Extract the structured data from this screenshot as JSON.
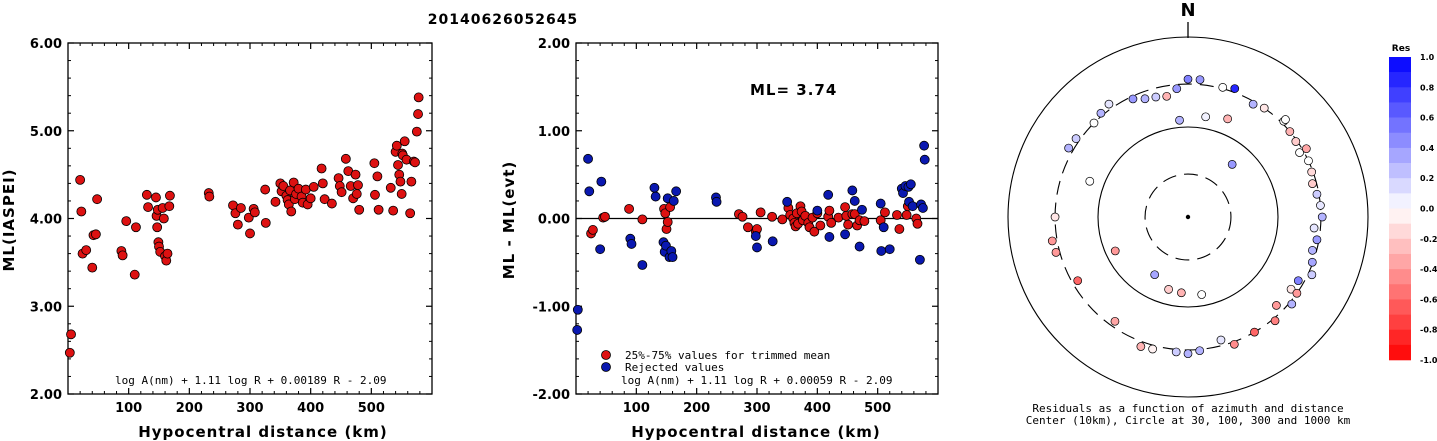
{
  "figure_title": "20140626052645",
  "colors": {
    "red": "#dd1111",
    "blue": "#0a18b0",
    "stroke": "#000000"
  },
  "chart_data": [
    {
      "type": "scatter",
      "id": "left",
      "xlabel": "Hypocentral distance (km)",
      "ylabel": "ML(IASPEI)",
      "xlim": [
        0,
        600
      ],
      "ylim": [
        2.0,
        6.0
      ],
      "xticks": [
        100,
        200,
        300,
        400,
        500
      ],
      "yticks": [
        2.0,
        3.0,
        4.0,
        5.0,
        6.0
      ],
      "ytick_labels": [
        "2.00",
        "3.00",
        "4.00",
        "5.00",
        "6.00"
      ],
      "formula": "log A(nm) + 1.11 log R + 0.00189 R - 2.09",
      "points": [
        [
          5,
          2.68
        ],
        [
          3,
          2.47
        ],
        [
          20,
          4.44
        ],
        [
          22,
          4.08
        ],
        [
          24,
          3.6
        ],
        [
          30,
          3.64
        ],
        [
          40,
          3.44
        ],
        [
          42,
          3.81
        ],
        [
          46,
          3.82
        ],
        [
          48,
          4.22
        ],
        [
          88,
          3.63
        ],
        [
          90,
          3.58
        ],
        [
          96,
          3.97
        ],
        [
          110,
          3.36
        ],
        [
          112,
          3.9
        ],
        [
          130,
          4.27
        ],
        [
          132,
          4.13
        ],
        [
          145,
          4.24
        ],
        [
          146,
          4.03
        ],
        [
          148,
          4.1
        ],
        [
          147,
          3.9
        ],
        [
          149,
          3.73
        ],
        [
          150,
          3.68
        ],
        [
          152,
          3.62
        ],
        [
          156,
          4.12
        ],
        [
          158,
          4.0
        ],
        [
          160,
          3.57
        ],
        [
          162,
          3.52
        ],
        [
          164,
          3.6
        ],
        [
          167,
          4.14
        ],
        [
          168,
          4.26
        ],
        [
          232,
          4.29
        ],
        [
          233,
          4.25
        ],
        [
          272,
          4.15
        ],
        [
          276,
          4.06
        ],
        [
          280,
          3.93
        ],
        [
          285,
          4.12
        ],
        [
          298,
          4.01
        ],
        [
          300,
          3.83
        ],
        [
          306,
          4.11
        ],
        [
          308,
          4.07
        ],
        [
          325,
          4.33
        ],
        [
          326,
          3.95
        ],
        [
          342,
          4.19
        ],
        [
          350,
          4.4
        ],
        [
          352,
          4.31
        ],
        [
          355,
          4.37
        ],
        [
          360,
          4.26
        ],
        [
          362,
          4.21
        ],
        [
          364,
          4.16
        ],
        [
          366,
          4.32
        ],
        [
          368,
          4.08
        ],
        [
          372,
          4.41
        ],
        [
          374,
          4.22
        ],
        [
          376,
          4.28
        ],
        [
          380,
          4.34
        ],
        [
          385,
          4.25
        ],
        [
          387,
          4.18
        ],
        [
          392,
          4.33
        ],
        [
          395,
          4.16
        ],
        [
          400,
          4.23
        ],
        [
          405,
          4.36
        ],
        [
          418,
          4.57
        ],
        [
          420,
          4.4
        ],
        [
          423,
          4.22
        ],
        [
          435,
          4.17
        ],
        [
          446,
          4.46
        ],
        [
          448,
          4.37
        ],
        [
          451,
          4.3
        ],
        [
          458,
          4.68
        ],
        [
          462,
          4.54
        ],
        [
          466,
          4.37
        ],
        [
          470,
          4.23
        ],
        [
          474,
          4.5
        ],
        [
          476,
          4.28
        ],
        [
          478,
          4.38
        ],
        [
          480,
          4.1
        ],
        [
          505,
          4.63
        ],
        [
          506,
          4.27
        ],
        [
          510,
          4.48
        ],
        [
          512,
          4.1
        ],
        [
          532,
          4.35
        ],
        [
          536,
          4.09
        ],
        [
          540,
          4.76
        ],
        [
          542,
          4.83
        ],
        [
          544,
          4.61
        ],
        [
          546,
          4.5
        ],
        [
          548,
          4.42
        ],
        [
          550,
          4.28
        ],
        [
          551,
          4.74
        ],
        [
          552,
          4.72
        ],
        [
          555,
          4.88
        ],
        [
          558,
          4.67
        ],
        [
          564,
          4.06
        ],
        [
          566,
          4.42
        ],
        [
          570,
          4.65
        ],
        [
          572,
          4.64
        ],
        [
          575,
          4.99
        ],
        [
          577,
          5.19
        ],
        [
          578,
          5.38
        ]
      ]
    },
    {
      "type": "scatter",
      "id": "middle",
      "xlabel": "Hypocentral distance (km)",
      "ylabel": "ML - ML(evt)",
      "xlim": [
        0,
        600
      ],
      "ylim": [
        -2.0,
        2.0
      ],
      "xticks": [
        100,
        200,
        300,
        400,
        500
      ],
      "yticks": [
        -2.0,
        -1.0,
        0.0,
        1.0,
        2.0
      ],
      "ytick_labels": [
        "-2.00",
        "-1.00",
        "0.00",
        "1.00",
        "2.00"
      ],
      "ml_label": "ML= 3.74",
      "formula": "log A(nm) + 1.11 log R + 0.00059 R - 2.09",
      "legend": [
        "25%-75% values for trimmed mean",
        "Rejected values"
      ],
      "series": [
        {
          "name": "25%-75% values for trimmed mean",
          "color": "red",
          "points": [
            [
              25,
              -0.17
            ],
            [
              28,
              -0.13
            ],
            [
              45,
              0.01
            ],
            [
              48,
              0.02
            ],
            [
              88,
              0.11
            ],
            [
              110,
              -0.01
            ],
            [
              146,
              0.11
            ],
            [
              148,
              0.06
            ],
            [
              150,
              -0.12
            ],
            [
              152,
              -0.04
            ],
            [
              156,
              0.13
            ],
            [
              270,
              0.05
            ],
            [
              276,
              0.02
            ],
            [
              285,
              -0.1
            ],
            [
              298,
              -0.15
            ],
            [
              300,
              -0.12
            ],
            [
              306,
              0.07
            ],
            [
              325,
              0.02
            ],
            [
              342,
              -0.01
            ],
            [
              352,
              0.12
            ],
            [
              355,
              0.04
            ],
            [
              360,
              0.0
            ],
            [
              362,
              -0.05
            ],
            [
              364,
              -0.09
            ],
            [
              366,
              0.06
            ],
            [
              368,
              -0.06
            ],
            [
              372,
              0.14
            ],
            [
              374,
              0.08
            ],
            [
              376,
              -0.02
            ],
            [
              380,
              0.03
            ],
            [
              385,
              -0.05
            ],
            [
              387,
              -0.1
            ],
            [
              392,
              0.01
            ],
            [
              395,
              -0.15
            ],
            [
              400,
              0.06
            ],
            [
              405,
              -0.08
            ],
            [
              418,
              0.02
            ],
            [
              420,
              0.09
            ],
            [
              423,
              -0.05
            ],
            [
              435,
              0.01
            ],
            [
              446,
              0.13
            ],
            [
              448,
              0.03
            ],
            [
              451,
              -0.07
            ],
            [
              458,
              0.05
            ],
            [
              462,
              0.05
            ],
            [
              466,
              -0.08
            ],
            [
              470,
              -0.02
            ],
            [
              478,
              -0.03
            ],
            [
              505,
              -0.02
            ],
            [
              512,
              0.07
            ],
            [
              532,
              0.04
            ],
            [
              536,
              -0.12
            ],
            [
              548,
              0.04
            ],
            [
              550,
              0.14
            ],
            [
              564,
              0.0
            ],
            [
              566,
              -0.06
            ]
          ]
        },
        {
          "name": "Rejected values",
          "color": "blue",
          "points": [
            [
              3,
              -1.04
            ],
            [
              2,
              -1.27
            ],
            [
              20,
              0.68
            ],
            [
              22,
              0.31
            ],
            [
              40,
              -0.35
            ],
            [
              42,
              0.42
            ],
            [
              90,
              -0.23
            ],
            [
              92,
              -0.29
            ],
            [
              110,
              -0.53
            ],
            [
              130,
              0.35
            ],
            [
              132,
              0.25
            ],
            [
              145,
              -0.27
            ],
            [
              147,
              -0.38
            ],
            [
              149,
              -0.31
            ],
            [
              152,
              0.23
            ],
            [
              155,
              -0.44
            ],
            [
              158,
              -0.37
            ],
            [
              160,
              -0.44
            ],
            [
              162,
              0.2
            ],
            [
              166,
              0.31
            ],
            [
              232,
              0.24
            ],
            [
              233,
              0.19
            ],
            [
              298,
              -0.2
            ],
            [
              300,
              -0.33
            ],
            [
              326,
              -0.26
            ],
            [
              350,
              0.19
            ],
            [
              400,
              0.09
            ],
            [
              418,
              0.27
            ],
            [
              420,
              -0.21
            ],
            [
              446,
              -0.18
            ],
            [
              458,
              0.32
            ],
            [
              462,
              0.2
            ],
            [
              470,
              -0.32
            ],
            [
              474,
              0.1
            ],
            [
              505,
              0.17
            ],
            [
              506,
              -0.37
            ],
            [
              510,
              -0.1
            ],
            [
              520,
              -0.35
            ],
            [
              540,
              0.34
            ],
            [
              542,
              0.29
            ],
            [
              546,
              0.37
            ],
            [
              551,
              0.36
            ],
            [
              552,
              0.19
            ],
            [
              555,
              0.39
            ],
            [
              558,
              0.14
            ],
            [
              570,
              -0.47
            ],
            [
              572,
              0.16
            ],
            [
              575,
              0.12
            ],
            [
              577,
              0.83
            ],
            [
              578,
              0.67
            ]
          ]
        }
      ]
    },
    {
      "type": "polar-scatter",
      "id": "right",
      "north_label": "N",
      "caption": [
        "Residuals as a function of azimuth and distance",
        "Center (10km), Circle at 30, 100, 300 and 1000 km"
      ],
      "rings_km": [
        30,
        100,
        300,
        1000
      ],
      "colorbar": {
        "title": "Res",
        "ticks": [
          "1.0",
          "0.8",
          "0.6",
          "0.4",
          "0.2",
          "0.0",
          "-0.2",
          "-0.4",
          "-0.6",
          "-0.8",
          "-1.0"
        ],
        "min": -1.0,
        "max": 1.0
      },
      "points": [
        [
          210,
          55,
          0.35
        ],
        [
          40,
          58,
          0.4
        ],
        [
          195,
          68,
          -0.2
        ],
        [
          185,
          70,
          -0.3
        ],
        [
          170,
          75,
          0.0
        ],
        [
          245,
          78,
          -0.4
        ],
        [
          355,
          120,
          0.3
        ],
        [
          10,
          135,
          0.05
        ],
        [
          290,
          145,
          0.0
        ],
        [
          22,
          150,
          -0.3
        ],
        [
          120,
          260,
          0.5
        ],
        [
          125,
          250,
          -0.1
        ],
        [
          135,
          245,
          -0.4
        ],
        [
          100,
          285,
          0.4
        ],
        [
          105,
          270,
          0.3
        ],
        [
          110,
          295,
          0.35
        ],
        [
          95,
          255,
          0.1
        ],
        [
          70,
          290,
          -0.15
        ],
        [
          65,
          300,
          0.0
        ],
        [
          80,
          285,
          0.2
        ],
        [
          75,
          270,
          -0.2
        ],
        [
          85,
          300,
          0.1
        ],
        [
          90,
          310,
          0.3
        ],
        [
          270,
          300,
          -0.1
        ],
        [
          240,
          260,
          -0.6
        ],
        [
          215,
          260,
          -0.35
        ],
        [
          165,
          260,
          0.1
        ],
        [
          150,
          300,
          -0.6
        ],
        [
          160,
          320,
          -0.45
        ],
        [
          175,
          310,
          0.3
        ],
        [
          180,
          330,
          0.3
        ],
        [
          185,
          320,
          0.2
        ],
        [
          195,
          330,
          -0.05
        ],
        [
          315,
          300,
          0.0
        ],
        [
          320,
          320,
          0.3
        ],
        [
          325,
          340,
          0.1
        ],
        [
          335,
          280,
          0.4
        ],
        [
          340,
          250,
          0.3
        ],
        [
          345,
          240,
          0.2
        ],
        [
          350,
          230,
          -0.3
        ],
        [
          355,
          270,
          0.4
        ],
        [
          0,
          340,
          0.5
        ],
        [
          5,
          340,
          0.4
        ],
        [
          15,
          310,
          0.0
        ],
        [
          20,
          330,
          0.85
        ],
        [
          30,
          280,
          0.3
        ],
        [
          35,
          300,
          -0.1
        ],
        [
          45,
          320,
          0.0
        ],
        [
          50,
          300,
          -0.3
        ],
        [
          55,
          290,
          -0.2
        ],
        [
          60,
          270,
          0.0
        ],
        [
          115,
          330,
          0.2
        ],
        [
          125,
          300,
          -0.4
        ],
        [
          130,
          320,
          0.3
        ],
        [
          140,
          320,
          -0.5
        ],
        [
          200,
          340,
          -0.3
        ],
        [
          255,
          330,
          -0.4
        ],
        [
          260,
          340,
          -0.4
        ],
        [
          300,
          340,
          0.3
        ],
        [
          305,
          330,
          0.2
        ],
        [
          45,
          340,
          0.0
        ],
        [
          60,
          330,
          -0.35
        ]
      ]
    }
  ]
}
